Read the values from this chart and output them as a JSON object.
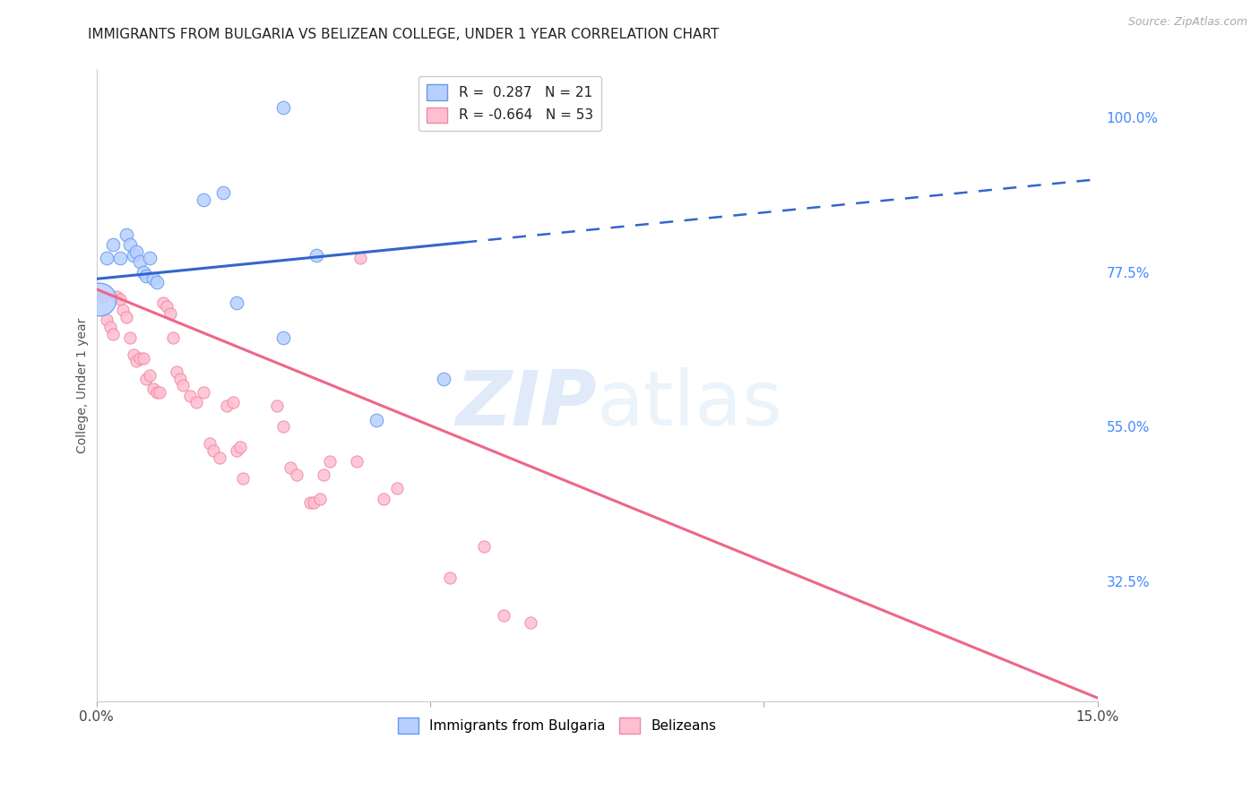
{
  "title": "IMMIGRANTS FROM BULGARIA VS BELIZEAN COLLEGE, UNDER 1 YEAR CORRELATION CHART",
  "source": "Source: ZipAtlas.com",
  "ylabel": "College, Under 1 year",
  "yticks": [
    100.0,
    77.5,
    55.0,
    32.5
  ],
  "ytick_labels": [
    "100.0%",
    "77.5%",
    "55.0%",
    "32.5%"
  ],
  "xlim": [
    0.0,
    15.0
  ],
  "ylim": [
    15.0,
    107.0
  ],
  "bg_color": "#ffffff",
  "grid_color": "#dddddd",
  "bulgaria_color": "#b8d0ff",
  "belize_color": "#ffbfd0",
  "bulgaria_edge": "#6699ee",
  "belize_edge": "#ee88aa",
  "trendline_bulgaria": "#3366cc",
  "trendline_belize": "#ee6688",
  "watermark_zip": "ZIP",
  "watermark_atlas": "atlas",
  "bulgaria_scatter_x": [
    0.15,
    0.25,
    0.35,
    0.45,
    0.5,
    0.55,
    0.6,
    0.65,
    0.7,
    0.75,
    0.8,
    0.85,
    0.9,
    1.6,
    1.9,
    2.1,
    2.8,
    3.3,
    4.2,
    5.2,
    2.8
  ],
  "bulgaria_scatter_y": [
    79.5,
    81.5,
    79.5,
    83.0,
    81.5,
    80.0,
    80.5,
    79.0,
    77.5,
    77.0,
    79.5,
    76.5,
    76.0,
    88.0,
    89.0,
    73.0,
    68.0,
    80.0,
    56.0,
    62.0,
    101.5
  ],
  "bulgaria_scatter_big": [
    0.05,
    73.5
  ],
  "belize_scatter_x": [
    0.1,
    0.15,
    0.2,
    0.25,
    0.3,
    0.35,
    0.4,
    0.45,
    0.5,
    0.55,
    0.6,
    0.65,
    0.7,
    0.75,
    0.8,
    0.85,
    0.9,
    0.95,
    1.0,
    1.05,
    1.1,
    1.15,
    1.2,
    1.25,
    1.3,
    1.4,
    1.5,
    1.6,
    1.7,
    1.75,
    1.85,
    1.95,
    2.05,
    2.1,
    2.15,
    2.2,
    2.7,
    2.8,
    2.9,
    3.0,
    3.2,
    3.25,
    3.35,
    3.4,
    3.9,
    3.95,
    4.3,
    4.5,
    5.3,
    5.8,
    6.1,
    6.5,
    3.5
  ],
  "belize_scatter_y": [
    74.0,
    70.5,
    69.5,
    68.5,
    74.0,
    73.5,
    72.0,
    71.0,
    68.0,
    65.5,
    64.5,
    65.0,
    65.0,
    62.0,
    62.5,
    60.5,
    60.0,
    60.0,
    73.0,
    72.5,
    71.5,
    68.0,
    63.0,
    62.0,
    61.0,
    59.5,
    58.5,
    60.0,
    52.5,
    51.5,
    50.5,
    58.0,
    58.5,
    51.5,
    52.0,
    47.5,
    58.0,
    55.0,
    49.0,
    48.0,
    44.0,
    44.0,
    44.5,
    48.0,
    50.0,
    79.5,
    44.5,
    46.0,
    33.0,
    37.5,
    27.5,
    26.5,
    50.0
  ],
  "trendline_bul_x0": 0.0,
  "trendline_bul_y0": 76.5,
  "trendline_bul_x1": 15.0,
  "trendline_bul_y1": 91.0,
  "trendline_bul_solid_end": 5.5,
  "trendline_bel_x0": 0.0,
  "trendline_bel_y0": 75.0,
  "trendline_bel_x1": 15.0,
  "trendline_bel_y1": 15.5
}
